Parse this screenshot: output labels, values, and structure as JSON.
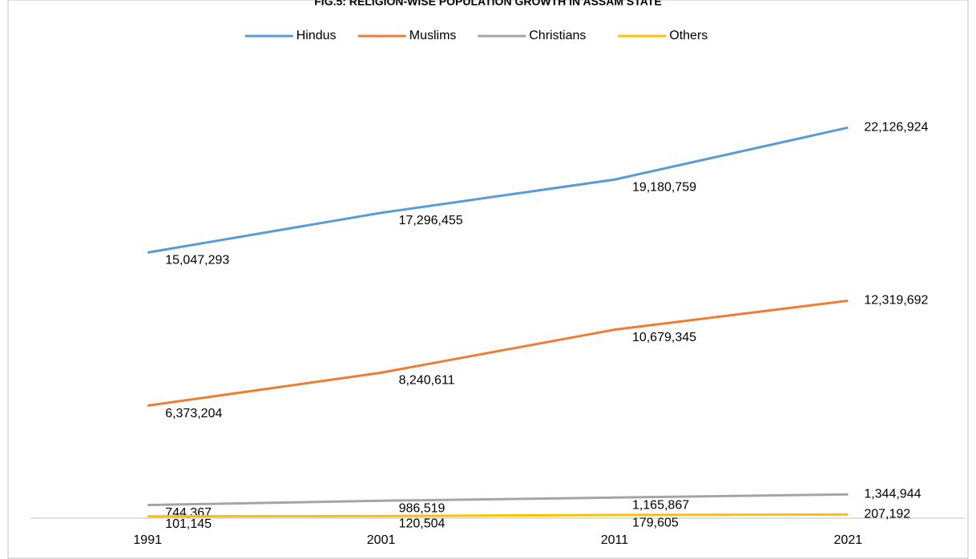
{
  "chart_data": {
    "type": "line",
    "title": "FIG.5: RELIGION-WISE POPULATION GROWTH IN ASSAM STATE",
    "categories": [
      "1991",
      "2001",
      "2011",
      "2021"
    ],
    "series": [
      {
        "name": "Hindus",
        "color": "#5b9bd5",
        "values": [
          15047293,
          17296455,
          19180759,
          22126924
        ],
        "value_labels": [
          "15,047,293",
          "17,296,455",
          "19,180,759",
          "22,126,924"
        ]
      },
      {
        "name": "Muslims",
        "color": "#ed7d31",
        "values": [
          6373204,
          8240611,
          10679345,
          12319692
        ],
        "value_labels": [
          "6,373,204",
          "8,240,611",
          "10,679,345",
          "12,319,692"
        ]
      },
      {
        "name": "Christians",
        "color": "#a5a5a5",
        "values": [
          744367,
          986519,
          1165867,
          1344944
        ],
        "value_labels": [
          "744,367",
          "986,519",
          "1,165,867",
          "1,344,944"
        ]
      },
      {
        "name": "Others",
        "color": "#ffc000",
        "values": [
          101145,
          120504,
          179605,
          207192
        ],
        "value_labels": [
          "101,145",
          "120,504",
          "179,605",
          "207,192"
        ]
      }
    ],
    "ylim": [
      0,
      25000000
    ],
    "legend": "top"
  }
}
